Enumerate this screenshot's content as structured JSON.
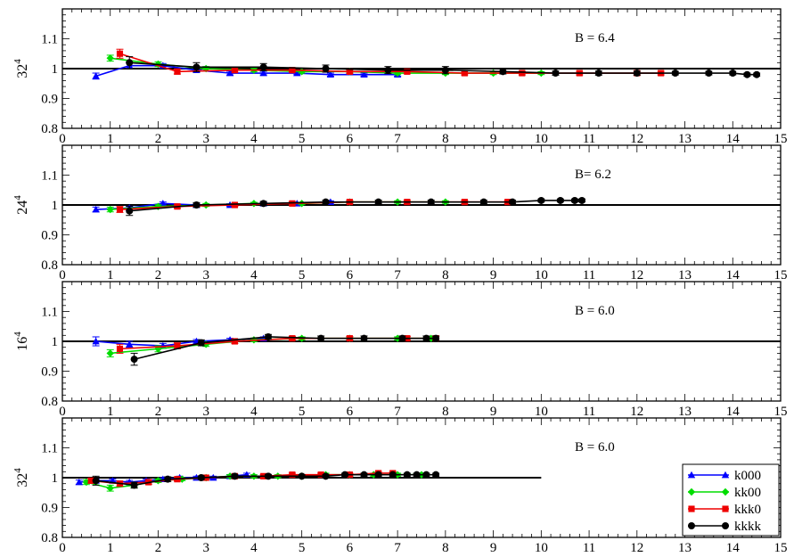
{
  "chart_data": [
    {
      "type": "line",
      "ylabel": "32",
      "ylabel_sup": "4",
      "annotation": "B = 6.4",
      "xlim": [
        0,
        15
      ],
      "ylim": [
        0.8,
        1.2
      ],
      "xticks": [
        "0",
        "1",
        "2",
        "3",
        "4",
        "5",
        "6",
        "7",
        "8",
        "9",
        "10",
        "11",
        "12",
        "13",
        "14",
        "15"
      ],
      "yticks": [
        "0.8",
        "0.9",
        "1",
        "1.1"
      ],
      "reference_line": {
        "y": 1.0,
        "x_from": 0,
        "x_to": 15
      },
      "series": [
        {
          "name": "k000",
          "color": "#0000ff",
          "marker": "triangle",
          "x": [
            0.7,
            1.4,
            2.1,
            2.8,
            3.5,
            4.2,
            4.9,
            5.6,
            6.3,
            7.0
          ],
          "y": [
            0.975,
            1.01,
            1.01,
            0.995,
            0.985,
            0.985,
            0.985,
            0.98,
            0.98,
            0.98
          ],
          "err": [
            0.01,
            0.01,
            0.007,
            0.006,
            0.006,
            0.006,
            0.005,
            0.005,
            0.005,
            0.005
          ]
        },
        {
          "name": "kk00",
          "color": "#00dd00",
          "marker": "diamond",
          "x": [
            1.0,
            2.0,
            3.0,
            4.0,
            5.0,
            6.0,
            7.0,
            8.0,
            9.0,
            10.0
          ],
          "y": [
            1.035,
            1.015,
            1.0,
            0.995,
            0.99,
            0.99,
            0.985,
            0.985,
            0.985,
            0.985
          ],
          "err": [
            0.01,
            0.008,
            0.007,
            0.006,
            0.005,
            0.005,
            0.005,
            0.005,
            0.005,
            0.005
          ]
        },
        {
          "name": "kkk0",
          "color": "#ee0000",
          "marker": "square",
          "x": [
            1.2,
            2.4,
            3.6,
            4.8,
            6.0,
            7.2,
            8.4,
            9.6,
            10.8,
            12.0,
            12.5
          ],
          "y": [
            1.05,
            0.99,
            0.995,
            0.995,
            0.99,
            0.99,
            0.985,
            0.985,
            0.985,
            0.985,
            0.985
          ],
          "err": [
            0.015,
            0.008,
            0.007,
            0.006,
            0.006,
            0.006,
            0.006,
            0.006,
            0.006,
            0.006,
            0.006
          ]
        },
        {
          "name": "kkkk",
          "color": "#000000",
          "marker": "circle",
          "x": [
            1.4,
            2.8,
            4.2,
            5.5,
            6.8,
            8.0,
            9.2,
            10.3,
            11.2,
            12.0,
            12.8,
            13.5,
            14.0,
            14.3,
            14.5
          ],
          "y": [
            1.02,
            1.005,
            1.005,
            1.0,
            0.995,
            0.995,
            0.99,
            0.985,
            0.985,
            0.985,
            0.985,
            0.985,
            0.985,
            0.98,
            0.98
          ],
          "err": [
            0.02,
            0.015,
            0.012,
            0.012,
            0.012,
            0.012,
            0.008,
            0.007,
            0.007,
            0.007,
            0.006,
            0.006,
            0.006,
            0.005,
            0.005
          ]
        }
      ]
    },
    {
      "type": "line",
      "ylabel": "24",
      "ylabel_sup": "4",
      "annotation": "B= 6.2",
      "xlim": [
        0,
        15
      ],
      "ylim": [
        0.8,
        1.2
      ],
      "xticks": [
        "0",
        "1",
        "2",
        "3",
        "4",
        "5",
        "6",
        "7",
        "8",
        "9",
        "10",
        "11",
        "12",
        "13",
        "14",
        "15"
      ],
      "yticks": [
        "0.8",
        "0.9",
        "1",
        "1.1"
      ],
      "reference_line": {
        "y": 1.0,
        "x_from": 0,
        "x_to": 15
      },
      "series": [
        {
          "name": "k000",
          "color": "#0000ff",
          "marker": "triangle",
          "x": [
            0.7,
            1.4,
            2.1,
            2.8,
            3.5,
            4.2,
            4.9,
            5.6
          ],
          "y": [
            0.985,
            0.99,
            1.005,
            1.0,
            1.0,
            1.005,
            1.005,
            1.01
          ],
          "err": [
            0.008,
            0.006,
            0.005,
            0.004,
            0.004,
            0.004,
            0.004,
            0.004
          ]
        },
        {
          "name": "kk00",
          "color": "#00dd00",
          "marker": "diamond",
          "x": [
            1.0,
            2.0,
            3.0,
            4.0,
            5.0,
            6.0,
            7.0,
            8.0
          ],
          "y": [
            0.985,
            0.995,
            1.0,
            1.005,
            1.005,
            1.01,
            1.01,
            1.01
          ],
          "err": [
            0.008,
            0.006,
            0.005,
            0.004,
            0.004,
            0.004,
            0.004,
            0.004
          ]
        },
        {
          "name": "kkk0",
          "color": "#ee0000",
          "marker": "square",
          "x": [
            1.2,
            2.4,
            3.6,
            4.8,
            6.0,
            7.2,
            8.4,
            9.3
          ],
          "y": [
            0.985,
            0.995,
            1.0,
            1.005,
            1.01,
            1.01,
            1.01,
            1.01
          ],
          "err": [
            0.01,
            0.006,
            0.005,
            0.005,
            0.005,
            0.005,
            0.005,
            0.005
          ]
        },
        {
          "name": "kkkk",
          "color": "#000000",
          "marker": "circle",
          "x": [
            1.4,
            2.8,
            4.2,
            5.5,
            6.6,
            7.7,
            8.8,
            9.4,
            10.0,
            10.4,
            10.7,
            10.85
          ],
          "y": [
            0.98,
            1.0,
            1.005,
            1.01,
            1.01,
            1.01,
            1.01,
            1.01,
            1.015,
            1.015,
            1.015,
            1.015
          ],
          "err": [
            0.015,
            0.008,
            0.007,
            0.006,
            0.006,
            0.006,
            0.006,
            0.006,
            0.005,
            0.005,
            0.005,
            0.005
          ]
        }
      ]
    },
    {
      "type": "line",
      "ylabel": "16",
      "ylabel_sup": "4",
      "annotation": "B = 6.0",
      "xlim": [
        0,
        15
      ],
      "ylim": [
        0.8,
        1.2
      ],
      "xticks": [
        "0",
        "1",
        "2",
        "3",
        "4",
        "5",
        "6",
        "7",
        "8",
        "9",
        "10",
        "11",
        "12",
        "13",
        "14",
        "15"
      ],
      "yticks": [
        "0.8",
        "0.9",
        "1",
        "1.1"
      ],
      "reference_line": {
        "y": 1.0,
        "x_from": 0,
        "x_to": 15
      },
      "series": [
        {
          "name": "k000",
          "color": "#0000ff",
          "marker": "triangle",
          "x": [
            0.7,
            1.4,
            2.1,
            2.8,
            3.5,
            4.2
          ],
          "y": [
            1.0,
            0.99,
            0.985,
            1.0,
            1.005,
            1.01
          ],
          "err": [
            0.015,
            0.01,
            0.008,
            0.006,
            0.005,
            0.005
          ]
        },
        {
          "name": "kk00",
          "color": "#00dd00",
          "marker": "diamond",
          "x": [
            1.0,
            2.0,
            3.0,
            4.0,
            5.0,
            6.0,
            7.0,
            7.7
          ],
          "y": [
            0.96,
            0.975,
            0.99,
            1.005,
            1.01,
            1.01,
            1.01,
            1.01
          ],
          "err": [
            0.012,
            0.01,
            0.007,
            0.006,
            0.005,
            0.005,
            0.005,
            0.005
          ]
        },
        {
          "name": "kkk0",
          "color": "#ee0000",
          "marker": "square",
          "x": [
            1.2,
            2.4,
            3.6,
            4.8,
            6.0,
            7.2,
            7.8
          ],
          "y": [
            0.975,
            0.985,
            1.0,
            1.01,
            1.01,
            1.01,
            1.01
          ],
          "err": [
            0.015,
            0.01,
            0.007,
            0.006,
            0.006,
            0.006,
            0.006
          ]
        },
        {
          "name": "kkkk",
          "color": "#000000",
          "marker": "circle",
          "x": [
            1.5,
            2.9,
            4.3,
            5.4,
            6.3,
            7.1,
            7.6,
            7.8
          ],
          "y": [
            0.94,
            0.995,
            1.015,
            1.01,
            1.01,
            1.01,
            1.01,
            1.01
          ],
          "err": [
            0.02,
            0.01,
            0.008,
            0.008,
            0.008,
            0.008,
            0.008,
            0.008
          ]
        }
      ]
    },
    {
      "type": "line",
      "ylabel": "32",
      "ylabel_sup": "4",
      "annotation": "B = 6.0",
      "xlim": [
        0,
        15
      ],
      "ylim": [
        0.8,
        1.2
      ],
      "xticks": [
        "0",
        "1",
        "2",
        "3",
        "4",
        "5",
        "6",
        "7",
        "8",
        "9",
        "10",
        "11",
        "12",
        "13",
        "14",
        "15"
      ],
      "yticks": [
        "0.8",
        "0.9",
        "1",
        "1.1"
      ],
      "reference_line": {
        "y": 1.0,
        "x_from": 0,
        "x_to": 10
      },
      "legend": {
        "placement": "bottom-right"
      },
      "series": [
        {
          "name": "k000",
          "color": "#0000ff",
          "marker": "triangle",
          "x": [
            0.35,
            0.7,
            1.05,
            1.4,
            1.75,
            2.1,
            2.45,
            2.8,
            3.15,
            3.5,
            3.85
          ],
          "y": [
            0.985,
            0.99,
            0.99,
            0.985,
            0.99,
            0.995,
            1.0,
            1.0,
            1.0,
            1.005,
            1.01
          ],
          "err": [
            0.007,
            0.006,
            0.006,
            0.006,
            0.005,
            0.005,
            0.005,
            0.005,
            0.005,
            0.005,
            0.005
          ]
        },
        {
          "name": "kk00",
          "color": "#00dd00",
          "marker": "diamond",
          "x": [
            0.5,
            1.0,
            1.5,
            2.0,
            2.5,
            3.0,
            3.5,
            4.0,
            4.5,
            5.0,
            5.5,
            6.0,
            6.5,
            7.0,
            7.5
          ],
          "y": [
            0.985,
            0.965,
            0.975,
            0.99,
            0.995,
            1.0,
            1.005,
            1.005,
            1.005,
            1.005,
            1.01,
            1.01,
            1.01,
            1.01,
            1.01
          ],
          "err": [
            0.008,
            0.01,
            0.008,
            0.006,
            0.005,
            0.005,
            0.005,
            0.005,
            0.005,
            0.005,
            0.005,
            0.005,
            0.005,
            0.005,
            0.005
          ]
        },
        {
          "name": "kkk0",
          "color": "#ee0000",
          "marker": "square",
          "x": [
            0.6,
            1.2,
            1.8,
            2.4,
            3.0,
            3.6,
            4.2,
            4.8,
            5.4,
            6.0,
            6.6,
            6.9
          ],
          "y": [
            0.99,
            0.98,
            0.985,
            0.995,
            1.0,
            1.005,
            1.005,
            1.01,
            1.01,
            1.01,
            1.015,
            1.015
          ],
          "err": [
            0.008,
            0.008,
            0.007,
            0.006,
            0.005,
            0.005,
            0.005,
            0.005,
            0.005,
            0.005,
            0.005,
            0.005
          ]
        },
        {
          "name": "kkkk",
          "color": "#000000",
          "marker": "circle",
          "x": [
            0.7,
            1.5,
            2.2,
            2.9,
            3.6,
            4.3,
            5.0,
            5.5,
            5.9,
            6.3,
            6.6,
            6.9,
            7.2,
            7.4,
            7.6,
            7.8
          ],
          "y": [
            0.99,
            0.975,
            0.995,
            1.0,
            1.005,
            1.005,
            1.005,
            1.005,
            1.01,
            1.01,
            1.01,
            1.01,
            1.01,
            1.01,
            1.01,
            1.01
          ],
          "err": [
            0.015,
            0.01,
            0.008,
            0.006,
            0.006,
            0.006,
            0.005,
            0.005,
            0.005,
            0.005,
            0.005,
            0.005,
            0.005,
            0.005,
            0.005,
            0.005
          ]
        }
      ]
    }
  ]
}
